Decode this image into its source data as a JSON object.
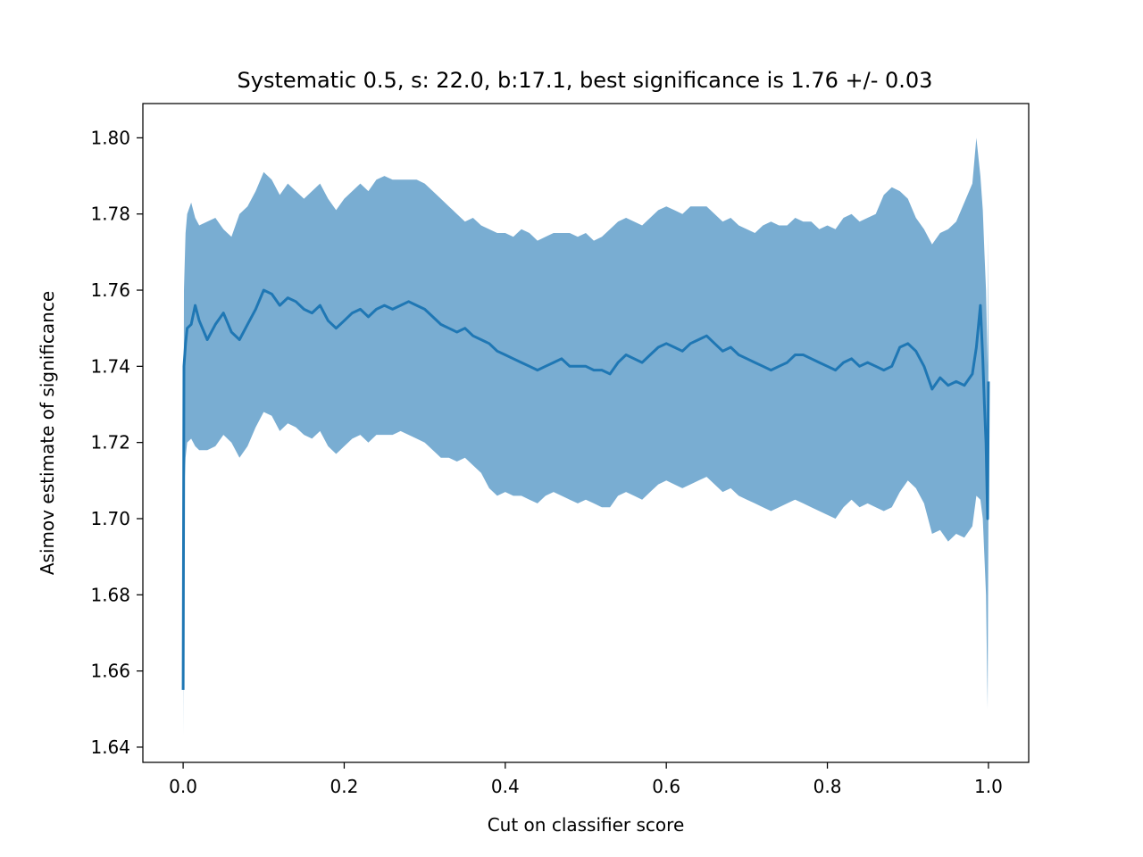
{
  "chart_data": {
    "type": "line",
    "title": "Systematic 0.5, s: 22.0, b:17.1, best significance is 1.76 +/- 0.03",
    "xlabel": "Cut on classifier score",
    "ylabel": "Asimov estimate of significance",
    "xlim": [
      -0.05,
      1.05
    ],
    "ylim": [
      1.636,
      1.809
    ],
    "xticks": [
      0.0,
      0.2,
      0.4,
      0.6,
      0.8,
      1.0
    ],
    "xtick_labels": [
      "0.0",
      "0.2",
      "0.4",
      "0.6",
      "0.8",
      "1.0"
    ],
    "yticks": [
      1.64,
      1.66,
      1.68,
      1.7,
      1.72,
      1.74,
      1.76,
      1.78,
      1.8
    ],
    "ytick_labels": [
      "1.64",
      "1.66",
      "1.68",
      "1.70",
      "1.72",
      "1.74",
      "1.76",
      "1.78",
      "1.80"
    ],
    "grid": false,
    "series": [
      {
        "color": "#1f77b4",
        "band_color": "#1f77b4",
        "band_opacity": 0.6,
        "x": [
          0.0,
          0.001,
          0.003,
          0.005,
          0.01,
          0.015,
          0.02,
          0.03,
          0.04,
          0.05,
          0.06,
          0.07,
          0.08,
          0.09,
          0.1,
          0.11,
          0.12,
          0.13,
          0.14,
          0.15,
          0.16,
          0.17,
          0.18,
          0.19,
          0.2,
          0.21,
          0.22,
          0.23,
          0.24,
          0.25,
          0.26,
          0.27,
          0.28,
          0.29,
          0.3,
          0.31,
          0.32,
          0.33,
          0.34,
          0.35,
          0.36,
          0.37,
          0.38,
          0.39,
          0.4,
          0.41,
          0.42,
          0.43,
          0.44,
          0.45,
          0.46,
          0.47,
          0.48,
          0.49,
          0.5,
          0.51,
          0.52,
          0.53,
          0.54,
          0.55,
          0.56,
          0.57,
          0.58,
          0.59,
          0.6,
          0.61,
          0.62,
          0.63,
          0.64,
          0.65,
          0.66,
          0.67,
          0.68,
          0.69,
          0.7,
          0.71,
          0.72,
          0.73,
          0.74,
          0.75,
          0.76,
          0.77,
          0.78,
          0.79,
          0.8,
          0.81,
          0.82,
          0.83,
          0.84,
          0.85,
          0.86,
          0.87,
          0.88,
          0.89,
          0.9,
          0.91,
          0.92,
          0.93,
          0.94,
          0.95,
          0.96,
          0.97,
          0.98,
          0.985,
          0.99,
          0.993,
          0.995,
          0.997,
          0.999,
          1.0
        ],
        "y": [
          1.655,
          1.74,
          1.746,
          1.75,
          1.751,
          1.756,
          1.752,
          1.747,
          1.751,
          1.754,
          1.749,
          1.747,
          1.751,
          1.755,
          1.76,
          1.759,
          1.756,
          1.758,
          1.757,
          1.755,
          1.754,
          1.756,
          1.752,
          1.75,
          1.752,
          1.754,
          1.755,
          1.753,
          1.755,
          1.756,
          1.755,
          1.756,
          1.757,
          1.756,
          1.755,
          1.753,
          1.751,
          1.75,
          1.749,
          1.75,
          1.748,
          1.747,
          1.746,
          1.744,
          1.743,
          1.742,
          1.741,
          1.74,
          1.739,
          1.74,
          1.741,
          1.742,
          1.74,
          1.74,
          1.74,
          1.739,
          1.739,
          1.738,
          1.741,
          1.743,
          1.742,
          1.741,
          1.743,
          1.745,
          1.746,
          1.745,
          1.744,
          1.746,
          1.747,
          1.748,
          1.746,
          1.744,
          1.745,
          1.743,
          1.742,
          1.741,
          1.74,
          1.739,
          1.74,
          1.741,
          1.743,
          1.743,
          1.742,
          1.741,
          1.74,
          1.739,
          1.741,
          1.742,
          1.74,
          1.741,
          1.74,
          1.739,
          1.74,
          1.745,
          1.746,
          1.744,
          1.74,
          1.734,
          1.737,
          1.735,
          1.736,
          1.735,
          1.738,
          1.745,
          1.756,
          1.742,
          1.73,
          1.72,
          1.7,
          1.736
        ],
        "upper": [
          1.67,
          1.76,
          1.775,
          1.78,
          1.783,
          1.779,
          1.777,
          1.778,
          1.779,
          1.776,
          1.774,
          1.78,
          1.782,
          1.786,
          1.791,
          1.789,
          1.785,
          1.788,
          1.786,
          1.784,
          1.786,
          1.788,
          1.784,
          1.781,
          1.784,
          1.786,
          1.788,
          1.786,
          1.789,
          1.79,
          1.789,
          1.789,
          1.789,
          1.789,
          1.788,
          1.786,
          1.784,
          1.782,
          1.78,
          1.778,
          1.779,
          1.777,
          1.776,
          1.775,
          1.775,
          1.774,
          1.776,
          1.775,
          1.773,
          1.774,
          1.775,
          1.775,
          1.775,
          1.774,
          1.775,
          1.773,
          1.774,
          1.776,
          1.778,
          1.779,
          1.778,
          1.777,
          1.779,
          1.781,
          1.782,
          1.781,
          1.78,
          1.782,
          1.782,
          1.782,
          1.78,
          1.778,
          1.779,
          1.777,
          1.776,
          1.775,
          1.777,
          1.778,
          1.777,
          1.777,
          1.779,
          1.778,
          1.778,
          1.776,
          1.777,
          1.776,
          1.779,
          1.78,
          1.778,
          1.779,
          1.78,
          1.785,
          1.787,
          1.786,
          1.784,
          1.779,
          1.776,
          1.772,
          1.775,
          1.776,
          1.778,
          1.783,
          1.788,
          1.8,
          1.79,
          1.781,
          1.77,
          1.76,
          1.74,
          1.775
        ],
        "lower": [
          1.643,
          1.705,
          1.716,
          1.72,
          1.721,
          1.719,
          1.718,
          1.718,
          1.719,
          1.722,
          1.72,
          1.716,
          1.719,
          1.724,
          1.728,
          1.727,
          1.723,
          1.725,
          1.724,
          1.722,
          1.721,
          1.723,
          1.719,
          1.717,
          1.719,
          1.721,
          1.722,
          1.72,
          1.722,
          1.722,
          1.722,
          1.723,
          1.722,
          1.721,
          1.72,
          1.718,
          1.716,
          1.716,
          1.715,
          1.716,
          1.714,
          1.712,
          1.708,
          1.706,
          1.707,
          1.706,
          1.706,
          1.705,
          1.704,
          1.706,
          1.707,
          1.706,
          1.705,
          1.704,
          1.705,
          1.704,
          1.703,
          1.703,
          1.706,
          1.707,
          1.706,
          1.705,
          1.707,
          1.709,
          1.71,
          1.709,
          1.708,
          1.709,
          1.71,
          1.711,
          1.709,
          1.707,
          1.708,
          1.706,
          1.705,
          1.704,
          1.703,
          1.702,
          1.703,
          1.704,
          1.705,
          1.704,
          1.703,
          1.702,
          1.701,
          1.7,
          1.703,
          1.705,
          1.703,
          1.704,
          1.703,
          1.702,
          1.703,
          1.707,
          1.71,
          1.708,
          1.704,
          1.696,
          1.697,
          1.694,
          1.696,
          1.695,
          1.698,
          1.706,
          1.705,
          1.7,
          1.69,
          1.68,
          1.65,
          1.7
        ]
      }
    ]
  }
}
